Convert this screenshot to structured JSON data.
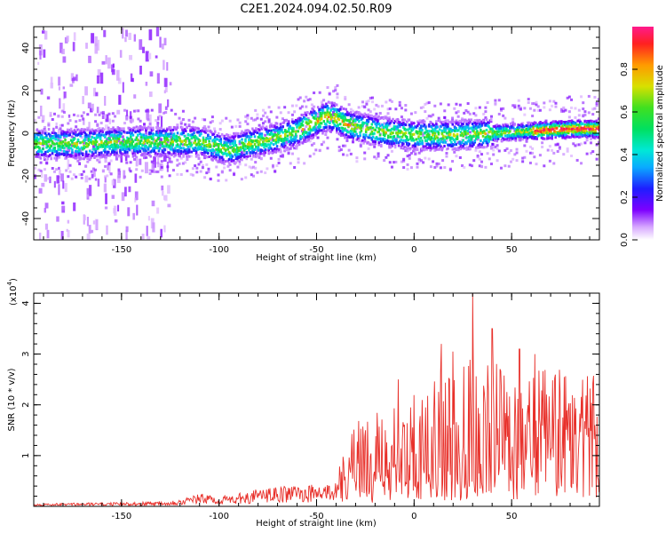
{
  "title": "C2E1.2024.094.02.50.R09",
  "chart_data": [
    {
      "type": "heatmap",
      "xlabel": "Height of straight line (km)",
      "ylabel": "Frequency (Hz)",
      "xlim": [
        -195,
        95
      ],
      "ylim": [
        -50,
        50
      ],
      "x_ticks": [
        -150,
        -100,
        -50,
        0,
        50
      ],
      "x_tick_labels": [
        "-150",
        "-100",
        "-50",
        "0",
        "50"
      ],
      "y_ticks": [
        -40,
        -20,
        0,
        20,
        40
      ],
      "y_tick_labels": [
        "-40",
        "-20",
        "0",
        "20",
        "40"
      ],
      "colorbar": {
        "label": "Normalized spectral amplitude",
        "range": [
          0,
          1
        ],
        "ticks": [
          0.0,
          0.2,
          0.4,
          0.6,
          0.8
        ],
        "tick_labels": [
          "0.0",
          "0.2",
          "0.4",
          "0.6",
          "0.8"
        ]
      },
      "ridge_frequency": {
        "x": [
          -195,
          -170,
          -150,
          -130,
          -110,
          -95,
          -85,
          -70,
          -60,
          -52,
          -45,
          -40,
          -35,
          -30,
          -25,
          -20,
          -10,
          0,
          20,
          40,
          60,
          80,
          95
        ],
        "y": [
          -5,
          -5,
          -4,
          -4,
          -4,
          -8,
          -5,
          -2,
          1,
          5,
          8,
          7,
          4,
          3,
          2,
          1,
          0,
          -1,
          -1,
          0,
          1,
          2,
          2
        ]
      }
    },
    {
      "type": "line",
      "xlabel": "Height of straight line (km)",
      "ylabel": "SNR (10 * v/v)",
      "y_scale_label": "(x10",
      "y_scale_exp": "4",
      "y_scale_close": ")",
      "xlim": [
        -195,
        95
      ],
      "ylim": [
        0,
        4.2
      ],
      "x_ticks": [
        -150,
        -100,
        -50,
        0,
        50
      ],
      "x_tick_labels": [
        "-150",
        "-100",
        "-50",
        "0",
        "50"
      ],
      "y_ticks": [
        1,
        2,
        3,
        4
      ],
      "y_tick_labels": [
        "1",
        "2",
        "3",
        "4"
      ],
      "color": "#e8302a",
      "series": [
        {
          "x": [
            -195,
            -170,
            -140,
            -120,
            -110,
            -100,
            -90,
            -80,
            -60,
            -50,
            -40,
            -35,
            -30,
            -20,
            -10,
            0,
            10,
            20,
            30,
            40,
            50,
            60,
            70,
            80,
            95
          ],
          "y": [
            0.03,
            0.04,
            0.05,
            0.08,
            0.15,
            0.12,
            0.15,
            0.2,
            0.25,
            0.25,
            0.3,
            0.8,
            1.1,
            1.3,
            1.5,
            1.6,
            1.7,
            1.9,
            2.0,
            1.9,
            1.8,
            1.8,
            1.8,
            1.8,
            1.7
          ]
        }
      ],
      "peaks": [
        {
          "x": 30,
          "y": 4.2
        },
        {
          "x": 40,
          "y": 3.5
        },
        {
          "x": 14,
          "y": 3.2
        },
        {
          "x": 20,
          "y": 3.05
        },
        {
          "x": -8,
          "y": 2.5
        },
        {
          "x": 54,
          "y": 3.1
        },
        {
          "x": 62,
          "y": 3.0
        },
        {
          "x": -25,
          "y": 1.5
        }
      ]
    }
  ]
}
